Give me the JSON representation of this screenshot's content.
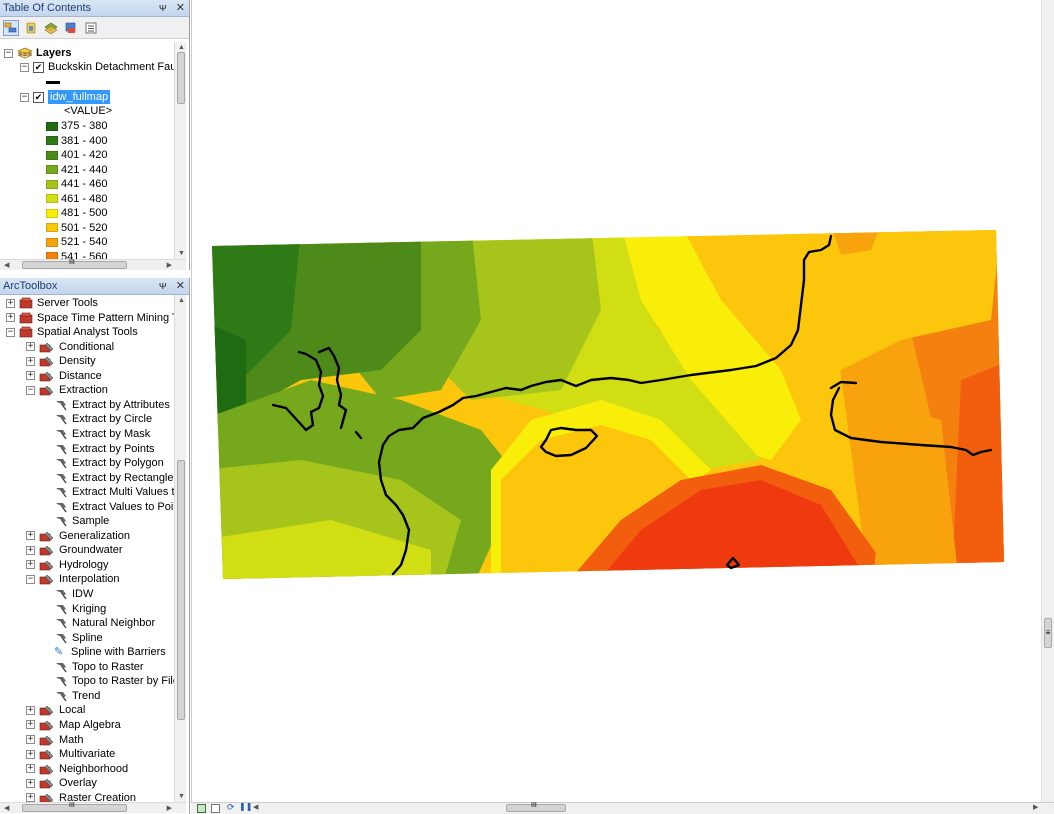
{
  "toc": {
    "title": "Table Of Contents",
    "pin": "ᴪ",
    "close": "×",
    "layers_label": "Layers",
    "fault_layer": "Buckskin Detachment Fault",
    "raster_layer": "idw_fullmap",
    "value_label": "<VALUE>",
    "legend": [
      {
        "label": "375 - 380",
        "color": "#1e6b12"
      },
      {
        "label": "381 - 400",
        "color": "#2e7a16"
      },
      {
        "label": "401 - 420",
        "color": "#4e8a1a"
      },
      {
        "label": "421 - 440",
        "color": "#76a81e"
      },
      {
        "label": "441 - 460",
        "color": "#a6c41c"
      },
      {
        "label": "461 - 480",
        "color": "#d2de14"
      },
      {
        "label": "481 - 500",
        "color": "#f8ee0a"
      },
      {
        "label": "501 - 520",
        "color": "#fcc60c"
      },
      {
        "label": "521 - 540",
        "color": "#f8a20e"
      },
      {
        "label": "541 - 560",
        "color": "#f4800e"
      }
    ],
    "hscroll_glyph": "III"
  },
  "toolbox": {
    "title": "ArcToolbox",
    "items": [
      {
        "label": "Server Tools",
        "level": 0,
        "kind": "box",
        "exp": "+"
      },
      {
        "label": "Space Time Pattern Mining Too",
        "level": 0,
        "kind": "box",
        "exp": "+"
      },
      {
        "label": "Spatial Analyst Tools",
        "level": 0,
        "kind": "box",
        "exp": "−"
      },
      {
        "label": "Conditional",
        "level": 1,
        "kind": "set",
        "exp": "+"
      },
      {
        "label": "Density",
        "level": 1,
        "kind": "set",
        "exp": "+"
      },
      {
        "label": "Distance",
        "level": 1,
        "kind": "set",
        "exp": "+"
      },
      {
        "label": "Extraction",
        "level": 1,
        "kind": "set",
        "exp": "−"
      },
      {
        "label": "Extract by Attributes",
        "level": 2,
        "kind": "tool"
      },
      {
        "label": "Extract by Circle",
        "level": 2,
        "kind": "tool"
      },
      {
        "label": "Extract by Mask",
        "level": 2,
        "kind": "tool"
      },
      {
        "label": "Extract by Points",
        "level": 2,
        "kind": "tool"
      },
      {
        "label": "Extract by Polygon",
        "level": 2,
        "kind": "tool"
      },
      {
        "label": "Extract by Rectangle",
        "level": 2,
        "kind": "tool"
      },
      {
        "label": "Extract Multi Values to P",
        "level": 2,
        "kind": "tool"
      },
      {
        "label": "Extract Values to Points",
        "level": 2,
        "kind": "tool"
      },
      {
        "label": "Sample",
        "level": 2,
        "kind": "tool"
      },
      {
        "label": "Generalization",
        "level": 1,
        "kind": "set",
        "exp": "+"
      },
      {
        "label": "Groundwater",
        "level": 1,
        "kind": "set",
        "exp": "+"
      },
      {
        "label": "Hydrology",
        "level": 1,
        "kind": "set",
        "exp": "+"
      },
      {
        "label": "Interpolation",
        "level": 1,
        "kind": "set",
        "exp": "−"
      },
      {
        "label": "IDW",
        "level": 2,
        "kind": "tool"
      },
      {
        "label": "Kriging",
        "level": 2,
        "kind": "tool"
      },
      {
        "label": "Natural Neighbor",
        "level": 2,
        "kind": "tool"
      },
      {
        "label": "Spline",
        "level": 2,
        "kind": "tool"
      },
      {
        "label": "Spline with Barriers",
        "level": 2,
        "kind": "script"
      },
      {
        "label": "Topo to Raster",
        "level": 2,
        "kind": "tool"
      },
      {
        "label": "Topo to Raster by File",
        "level": 2,
        "kind": "tool"
      },
      {
        "label": "Trend",
        "level": 2,
        "kind": "tool"
      },
      {
        "label": "Local",
        "level": 1,
        "kind": "set",
        "exp": "+"
      },
      {
        "label": "Map Algebra",
        "level": 1,
        "kind": "set",
        "exp": "+"
      },
      {
        "label": "Math",
        "level": 1,
        "kind": "set",
        "exp": "+"
      },
      {
        "label": "Multivariate",
        "level": 1,
        "kind": "set",
        "exp": "+"
      },
      {
        "label": "Neighborhood",
        "level": 1,
        "kind": "set",
        "exp": "+"
      },
      {
        "label": "Overlay",
        "level": 1,
        "kind": "set",
        "exp": "+"
      },
      {
        "label": "Raster Creation",
        "level": 1,
        "kind": "set",
        "exp": "+"
      }
    ],
    "hscroll_glyph": "III"
  },
  "map": {
    "hscroll_glyph": "III",
    "vscroll_glyph": "≡"
  },
  "colors": {
    "fault_line": "#000000",
    "selection": "#3399ff"
  }
}
